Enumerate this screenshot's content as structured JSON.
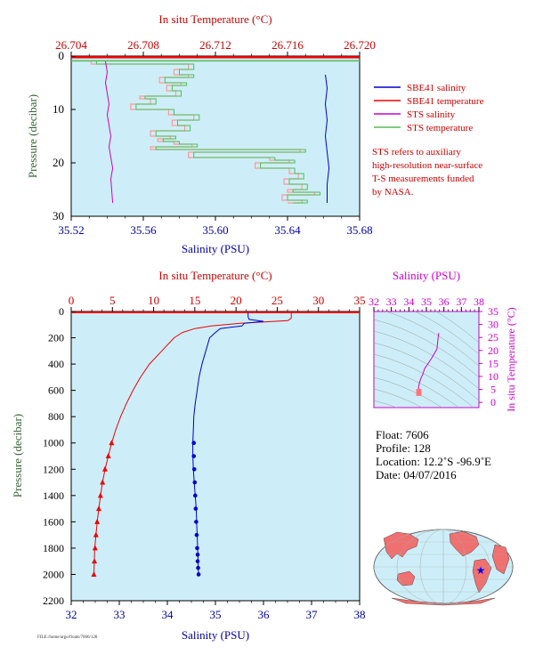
{
  "colors": {
    "salinity": "#0000cc",
    "temperature": "#ee0000",
    "sts_salinity": "#cc00cc",
    "sts_temperature": "#55bb55",
    "sbe_temp_light": "#ff9999",
    "plot_bg": "#cdeef8",
    "pressure_axis": "#336633",
    "black": "#000000"
  },
  "chart_data": [
    {
      "id": "near-surface",
      "type": "line",
      "top_axis_label": "In situ Temperature (°C)",
      "top_ticks": [
        "26.704",
        "26.708",
        "26.712",
        "26.716",
        "26.720"
      ],
      "xlabel": "Salinity (PSU)",
      "x_ticks": [
        "35.52",
        "35.56",
        "35.60",
        "35.64",
        "35.68"
      ],
      "ylabel": "Pressure (decibar)",
      "y_ticks": [
        "0",
        "10",
        "20",
        "30"
      ],
      "xlim": [
        35.52,
        35.68
      ],
      "temp_lim": [
        26.704,
        26.72
      ],
      "ylim": [
        0,
        30
      ],
      "legend": [
        {
          "label": "SBE41 salinity",
          "color": "#0000cc"
        },
        {
          "label": "SBE41 temperature",
          "color": "#ee0000"
        },
        {
          "label": "STS salinity",
          "color": "#cc00cc"
        },
        {
          "label": "STS temperature",
          "color": "#55bb55"
        }
      ],
      "note": [
        "STS refers to auxiliary",
        "high-resolution near-surface",
        "T-S measurements funded",
        "by NASA."
      ],
      "series": [
        {
          "name": "SBE41 salinity",
          "x": [
            35.661,
            35.662,
            35.661,
            35.662,
            35.661,
            35.662,
            35.663,
            35.662,
            35.662
          ],
          "y": [
            3.5,
            6,
            9,
            12,
            15,
            18,
            21,
            24,
            27.5
          ]
        },
        {
          "name": "SBE41 temperature",
          "x": [
            26.7201,
            26.7201
          ],
          "y": [
            0.2,
            0.2
          ]
        },
        {
          "name": "STS salinity",
          "x": [
            35.539,
            35.54,
            35.539,
            35.54,
            35.541,
            35.54,
            35.541,
            35.542,
            35.541,
            35.542,
            35.543,
            35.542,
            35.543
          ],
          "y": [
            1,
            3,
            5,
            7,
            9,
            11,
            13,
            15,
            17,
            19,
            21,
            23,
            27.5
          ]
        },
        {
          "name": "STS temperature",
          "x": [
            26.7054,
            26.7108,
            26.71,
            26.7108,
            26.7092,
            26.7104,
            26.7096,
            26.7101,
            26.7081,
            26.7087,
            26.7076,
            26.7097,
            26.7111,
            26.7099,
            26.7106,
            26.7087,
            26.7098,
            26.7091,
            26.71,
            26.711,
            26.7087,
            26.717,
            26.7108,
            26.7153,
            26.7164,
            26.7145,
            26.7164,
            26.7169,
            26.7161,
            26.7171,
            26.7163,
            26.7178,
            26.716,
            26.7171,
            26.7163
          ],
          "y": [
            1,
            1.5,
            2.5,
            3.5,
            4,
            5,
            5.5,
            6.5,
            7.5,
            8,
            9,
            10,
            11,
            12,
            13,
            14,
            15,
            15.5,
            16,
            16.5,
            17,
            17.5,
            18,
            19,
            19.5,
            20,
            21,
            22,
            23,
            24,
            25,
            25.5,
            26,
            27,
            27.5
          ]
        }
      ]
    },
    {
      "id": "full-profile",
      "type": "line",
      "top_axis_label": "In situ Temperature (°C)",
      "top_ticks": [
        "0",
        "5",
        "10",
        "15",
        "20",
        "25",
        "30",
        "35"
      ],
      "xlabel": "Salinity (PSU)",
      "x_ticks": [
        "32",
        "33",
        "34",
        "35",
        "36",
        "37",
        "38"
      ],
      "ylabel": "Pressure (decibar)",
      "y_ticks": [
        "0",
        "200",
        "400",
        "600",
        "800",
        "1000",
        "1200",
        "1400",
        "1600",
        "1800",
        "2000",
        "2200"
      ],
      "xlim": [
        32,
        38
      ],
      "temp_lim": [
        0,
        35
      ],
      "ylim": [
        0,
        2200
      ],
      "series": [
        {
          "name": "Salinity",
          "x": [
            35.68,
            35.68,
            35.7,
            36.0,
            35.6,
            35.55,
            35.1,
            35.0,
            34.88,
            34.8,
            34.72,
            34.66,
            34.62,
            34.58,
            34.55,
            34.54,
            34.53,
            34.53,
            34.54,
            34.56,
            34.58,
            34.6,
            34.61,
            34.62,
            34.63,
            34.64,
            34.64,
            34.65
          ],
          "y": [
            5,
            40,
            60,
            75,
            90,
            110,
            130,
            160,
            200,
            300,
            400,
            500,
            600,
            700,
            800,
            900,
            1000,
            1100,
            1200,
            1300,
            1400,
            1500,
            1600,
            1700,
            1800,
            1900,
            1950,
            2000
          ]
        },
        {
          "name": "Temperature",
          "x": [
            26.7,
            26.7,
            26.3,
            20.5,
            17.0,
            15.0,
            13.5,
            12.5,
            11.0,
            9.5,
            8.4,
            7.5,
            6.7,
            6.0,
            5.4,
            4.9,
            4.5,
            4.1,
            3.8,
            3.55,
            3.35,
            3.15,
            3.0,
            2.85,
            2.75
          ],
          "y": [
            5,
            50,
            70,
            90,
            110,
            130,
            160,
            200,
            300,
            400,
            500,
            600,
            700,
            800,
            900,
            1000,
            1100,
            1200,
            1300,
            1400,
            1500,
            1600,
            1700,
            1800,
            2000
          ]
        },
        {
          "name": "Salinity points",
          "x": [
            34.55,
            34.55,
            34.56,
            34.57,
            34.58,
            34.59,
            34.6,
            34.61,
            34.62,
            34.63,
            34.63,
            34.64,
            34.65
          ],
          "y": [
            1000,
            1100,
            1200,
            1300,
            1400,
            1500,
            1600,
            1700,
            1800,
            1850,
            1900,
            1950,
            2000
          ]
        },
        {
          "name": "Temperature points",
          "x": [
            4.9,
            4.5,
            4.1,
            3.8,
            3.55,
            3.35,
            3.15,
            3.0,
            2.9,
            2.82,
            2.75
          ],
          "y": [
            1000,
            1100,
            1200,
            1300,
            1400,
            1500,
            1600,
            1700,
            1800,
            1900,
            2000
          ]
        }
      ]
    },
    {
      "id": "ts-diagram",
      "type": "line",
      "top_axis_label": "Salinity (PSU)",
      "top_ticks": [
        "32",
        "33",
        "34",
        "35",
        "36",
        "37",
        "38"
      ],
      "right_axis_label": "In situ Temperature (°C)",
      "right_ticks": [
        "0",
        "5",
        "10",
        "15",
        "20",
        "25",
        "30",
        "35"
      ],
      "xlim": [
        32,
        38
      ],
      "ylim": [
        -2,
        35
      ],
      "series": [
        {
          "name": "T-S curve",
          "x": [
            35.7,
            35.6,
            35.3,
            35.1,
            34.9,
            34.8,
            34.7,
            34.6,
            34.55,
            34.6,
            34.62,
            34.64
          ],
          "y": [
            26.7,
            20.5,
            17.0,
            15.0,
            13.0,
            11.0,
            9.5,
            7.5,
            5.5,
            4.5,
            3.5,
            2.75
          ]
        }
      ]
    }
  ],
  "float_info": {
    "float": "Float:  7606",
    "profile": "Profile:  128",
    "location": "Location:  12.2˚S  -96.9˚E",
    "date": "Date:  04/07/2016"
  },
  "map": {
    "marker_lat": -12.2,
    "marker_lon": -96.9
  },
  "footer_text": "FILE:/home/argo/floats/7606/128"
}
